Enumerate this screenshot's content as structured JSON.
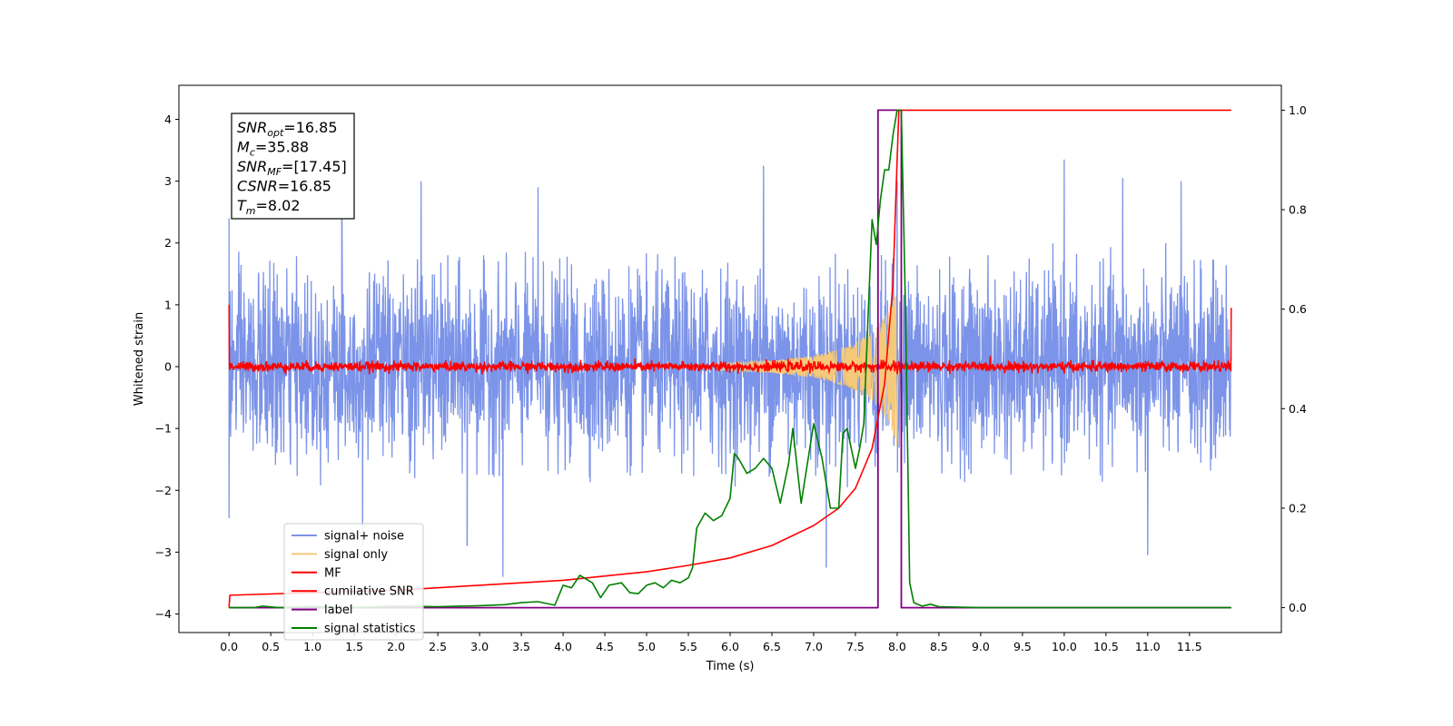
{
  "chart_data": {
    "type": "line",
    "title": "",
    "xlabel": "Time (s)",
    "ylabel": "Whitened strain",
    "xlim": [
      -0.6,
      12.6
    ],
    "ylim": [
      -4.3,
      4.55
    ],
    "y2lim": [
      -0.05,
      1.05
    ],
    "x_ticks": [
      0.0,
      0.5,
      1.0,
      1.5,
      2.0,
      2.5,
      3.0,
      3.5,
      4.0,
      4.5,
      5.0,
      5.5,
      6.0,
      6.5,
      7.0,
      7.5,
      8.0,
      8.5,
      9.0,
      9.5,
      10.0,
      10.5,
      11.0,
      11.5
    ],
    "x_tick_labels": [
      "0.0",
      "0.5",
      "1.0",
      "1.5",
      "2.0",
      "2.5",
      "3.0",
      "3.5",
      "4.0",
      "4.5",
      "5.0",
      "5.5",
      "6.0",
      "6.5",
      "7.0",
      "7.5",
      "8.0",
      "8.5",
      "9.0",
      "9.5",
      "10.0",
      "10.5",
      "11.0",
      "11.5"
    ],
    "y_ticks": [
      -4,
      -3,
      -2,
      -1,
      0,
      1,
      2,
      3,
      4
    ],
    "y_tick_labels": [
      "−4",
      "−3",
      "−2",
      "−1",
      "0",
      "1",
      "2",
      "3",
      "4"
    ],
    "y2_ticks": [
      0.0,
      0.2,
      0.4,
      0.6,
      0.8,
      1.0
    ],
    "y2_tick_labels": [
      "0.0",
      "0.2",
      "0.4",
      "0.6",
      "0.8",
      "1.0"
    ],
    "legend_position": "lower-left",
    "annotation": {
      "lines": [
        {
          "sym": "SNR",
          "sub": "opt",
          "val": "=16.85"
        },
        {
          "sym": "M",
          "sub": "c",
          "val": "=35.88"
        },
        {
          "sym": "SNR",
          "sub": "MF",
          "val": "=[17.45]"
        },
        {
          "sym": "CSNR",
          "sub": "",
          "val": "=16.85"
        },
        {
          "sym": "T",
          "sub": "m",
          "val": "=8.02"
        }
      ]
    },
    "series": [
      {
        "name": "signal+ noise",
        "color": "#7b93e8",
        "axis": "left",
        "noise_amplitude": 1.7,
        "peak_values": [
          {
            "x": 0.0,
            "y": 2.4
          },
          {
            "x": 0.0,
            "y": -2.45
          },
          {
            "x": 1.35,
            "y": 2.85
          },
          {
            "x": 1.6,
            "y": -2.9
          },
          {
            "x": 2.3,
            "y": 3.0
          },
          {
            "x": 2.85,
            "y": -2.9
          },
          {
            "x": 3.28,
            "y": -3.4
          },
          {
            "x": 3.7,
            "y": 2.9
          },
          {
            "x": 6.4,
            "y": 3.25
          },
          {
            "x": 7.15,
            "y": -3.25
          },
          {
            "x": 8.0,
            "y": 3.0
          },
          {
            "x": 10.0,
            "y": 3.35
          },
          {
            "x": 10.7,
            "y": 3.05
          },
          {
            "x": 11.0,
            "y": -3.05
          },
          {
            "x": 11.4,
            "y": 3.0
          }
        ]
      },
      {
        "name": "signal only",
        "color": "#f5c97a",
        "axis": "left",
        "envelope": [
          [
            5.8,
            0.05
          ],
          [
            6.5,
            0.1
          ],
          [
            7.0,
            0.18
          ],
          [
            7.4,
            0.32
          ],
          [
            7.7,
            0.55
          ],
          [
            7.9,
            0.9
          ],
          [
            8.0,
            1.3
          ],
          [
            8.02,
            0.0
          ]
        ]
      },
      {
        "name": "MF",
        "color": "#ff0000",
        "axis": "left",
        "noise_amplitude": 0.08,
        "edge_values": [
          {
            "x": 0.0,
            "y": 1.0
          },
          {
            "x": 12.0,
            "y": 0.95
          }
        ]
      },
      {
        "name": "cumilative SNR",
        "color": "#ff0000",
        "axis": "right",
        "points": [
          [
            0.0,
            0.0
          ],
          [
            0.01,
            0.025
          ],
          [
            1.0,
            0.03
          ],
          [
            2.0,
            0.035
          ],
          [
            3.0,
            0.045
          ],
          [
            4.0,
            0.055
          ],
          [
            5.0,
            0.072
          ],
          [
            5.5,
            0.085
          ],
          [
            6.0,
            0.1
          ],
          [
            6.5,
            0.125
          ],
          [
            7.0,
            0.165
          ],
          [
            7.3,
            0.2
          ],
          [
            7.5,
            0.24
          ],
          [
            7.7,
            0.32
          ],
          [
            7.85,
            0.45
          ],
          [
            7.95,
            0.65
          ],
          [
            8.0,
            0.9
          ],
          [
            8.02,
            1.0
          ],
          [
            12.0,
            1.0
          ]
        ]
      },
      {
        "name": "label",
        "color": "#800080",
        "axis": "right",
        "points": [
          [
            0.0,
            0.0
          ],
          [
            7.77,
            0.0
          ],
          [
            7.77,
            1.0
          ],
          [
            8.05,
            1.0
          ],
          [
            8.05,
            0.0
          ],
          [
            12.0,
            0.0
          ]
        ]
      },
      {
        "name": "signal statistics",
        "color": "#008000",
        "axis": "right",
        "points": [
          [
            0.0,
            0.0
          ],
          [
            0.3,
            0.0
          ],
          [
            0.4,
            0.003
          ],
          [
            0.6,
            0.0
          ],
          [
            1.0,
            0.002
          ],
          [
            1.5,
            0.0
          ],
          [
            2.0,
            0.003
          ],
          [
            2.5,
            0.002
          ],
          [
            3.0,
            0.004
          ],
          [
            3.3,
            0.006
          ],
          [
            3.5,
            0.01
          ],
          [
            3.7,
            0.012
          ],
          [
            3.9,
            0.005
          ],
          [
            4.0,
            0.045
          ],
          [
            4.1,
            0.04
          ],
          [
            4.2,
            0.065
          ],
          [
            4.35,
            0.05
          ],
          [
            4.45,
            0.02
          ],
          [
            4.55,
            0.045
          ],
          [
            4.7,
            0.05
          ],
          [
            4.8,
            0.03
          ],
          [
            4.9,
            0.028
          ],
          [
            5.0,
            0.045
          ],
          [
            5.1,
            0.05
          ],
          [
            5.2,
            0.04
          ],
          [
            5.3,
            0.055
          ],
          [
            5.4,
            0.05
          ],
          [
            5.5,
            0.06
          ],
          [
            5.55,
            0.08
          ],
          [
            5.6,
            0.16
          ],
          [
            5.7,
            0.19
          ],
          [
            5.8,
            0.175
          ],
          [
            5.9,
            0.185
          ],
          [
            6.0,
            0.22
          ],
          [
            6.05,
            0.31
          ],
          [
            6.1,
            0.3
          ],
          [
            6.2,
            0.27
          ],
          [
            6.3,
            0.28
          ],
          [
            6.4,
            0.3
          ],
          [
            6.5,
            0.28
          ],
          [
            6.6,
            0.21
          ],
          [
            6.7,
            0.29
          ],
          [
            6.75,
            0.36
          ],
          [
            6.85,
            0.21
          ],
          [
            7.0,
            0.37
          ],
          [
            7.1,
            0.3
          ],
          [
            7.2,
            0.2
          ],
          [
            7.3,
            0.2
          ],
          [
            7.35,
            0.35
          ],
          [
            7.4,
            0.36
          ],
          [
            7.5,
            0.28
          ],
          [
            7.55,
            0.32
          ],
          [
            7.6,
            0.37
          ],
          [
            7.65,
            0.58
          ],
          [
            7.7,
            0.78
          ],
          [
            7.75,
            0.73
          ],
          [
            7.8,
            0.82
          ],
          [
            7.85,
            0.88
          ],
          [
            7.9,
            0.88
          ],
          [
            7.95,
            0.95
          ],
          [
            8.0,
            1.0
          ],
          [
            8.05,
            1.0
          ],
          [
            8.1,
            0.6
          ],
          [
            8.15,
            0.05
          ],
          [
            8.2,
            0.01
          ],
          [
            8.3,
            0.003
          ],
          [
            8.4,
            0.007
          ],
          [
            8.5,
            0.002
          ],
          [
            9.0,
            0.0
          ],
          [
            12.0,
            0.0
          ]
        ]
      }
    ]
  }
}
